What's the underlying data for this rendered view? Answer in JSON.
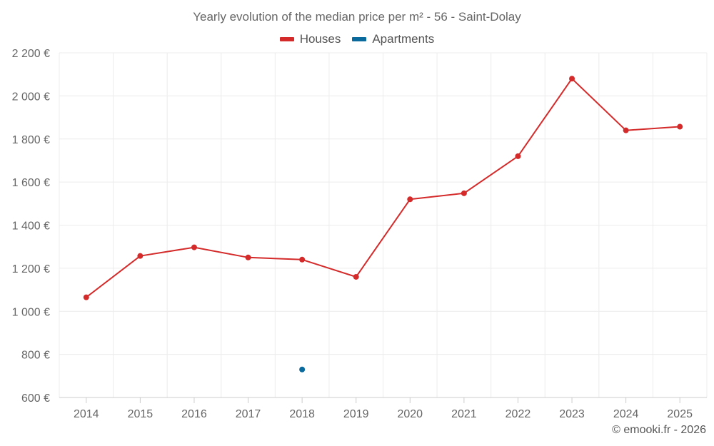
{
  "chart_data": {
    "type": "line",
    "title": "Yearly evolution of the median price per m² - 56 - Saint-Dolay",
    "categories": [
      "2014",
      "2015",
      "2016",
      "2017",
      "2018",
      "2019",
      "2020",
      "2021",
      "2022",
      "2023",
      "2024",
      "2025"
    ],
    "series": [
      {
        "name": "Houses",
        "color": "#d42a2a",
        "values": [
          1065,
          1257,
          1297,
          1250,
          1240,
          1160,
          1520,
          1548,
          1720,
          2080,
          1840,
          1857
        ]
      },
      {
        "name": "Apartments",
        "color": "#0a6a9e",
        "values": [
          null,
          null,
          null,
          null,
          730,
          null,
          null,
          null,
          null,
          null,
          null,
          null
        ]
      }
    ],
    "ylim": [
      600,
      2200
    ],
    "yticks": [
      600,
      800,
      1000,
      1200,
      1400,
      1600,
      1800,
      2000,
      2200
    ],
    "ytick_labels": [
      "600 €",
      "800 €",
      "1 000 €",
      "1 200 €",
      "1 400 €",
      "1 600 €",
      "1 800 €",
      "2 000 €",
      "2 200 €"
    ],
    "xlabel": "",
    "ylabel": "",
    "grid": true,
    "legend_position": "top-center"
  },
  "footer": {
    "copyright": "© emooki.fr - 2026"
  }
}
